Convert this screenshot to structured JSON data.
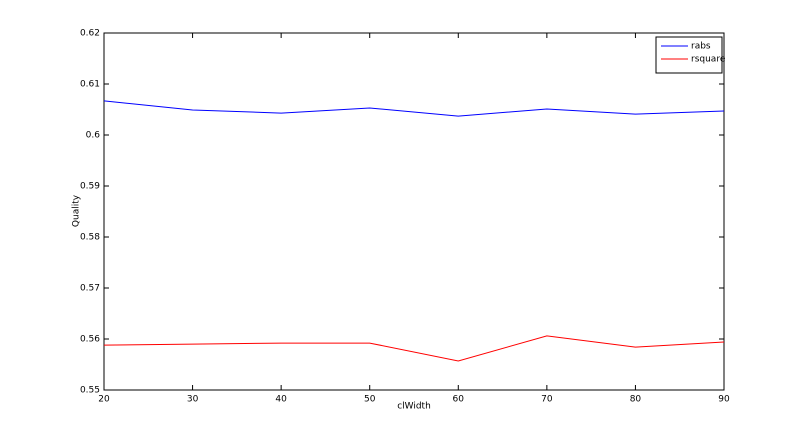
{
  "chart_data": {
    "type": "line",
    "x": [
      20,
      30,
      40,
      50,
      60,
      70,
      80,
      90
    ],
    "series": [
      {
        "name": "rabs",
        "color": "#0000ff",
        "values": [
          0.6067,
          0.6049,
          0.6043,
          0.6053,
          0.6037,
          0.6051,
          0.6041,
          0.6047
        ]
      },
      {
        "name": "rsquare",
        "color": "#ff0000",
        "values": [
          0.5588,
          0.559,
          0.5592,
          0.5592,
          0.5557,
          0.5606,
          0.5584,
          0.5594
        ]
      }
    ],
    "xlabel": "clWidth",
    "ylabel": "Quality",
    "xlim": [
      20,
      90
    ],
    "xticks": [
      20,
      30,
      40,
      50,
      60,
      70,
      80,
      90
    ],
    "ylim": [
      0.55,
      0.62
    ],
    "yticks": [
      0.55,
      0.56,
      0.57,
      0.58,
      0.59,
      0.6,
      0.61,
      0.62
    ],
    "grid": false,
    "legend": "top-right"
  }
}
